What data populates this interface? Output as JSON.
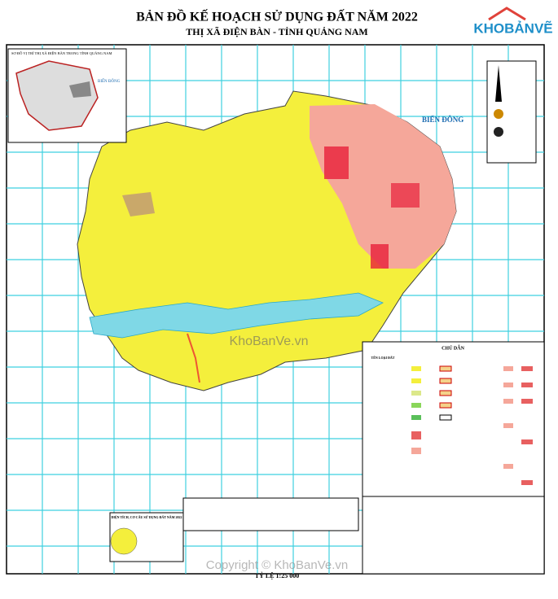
{
  "header": {
    "title": "BẢN ĐỒ KẾ HOẠCH SỬ DỤNG ĐẤT NĂM 2022",
    "subtitle": "THỊ XÃ ĐIỆN BÀN - TỈNH QUẢNG NAM"
  },
  "logo": "KHOBẢNVẼ",
  "map": {
    "sea_label": "BIỂN ĐÔNG",
    "inset_title": "SƠ ĐỒ VỊ TRÍ THỊ XÃ ĐIỆN BÀN TRONG TỈNH QUẢNG NAM",
    "inset_sea_label": "BIỂN ĐÔNG"
  },
  "legend": {
    "title": "CHÚ DẪN",
    "column_header": "TÊN LOẠI ĐẤT"
  },
  "pie_chart": {
    "title": "DIỆN TÍCH, CƠ CẤU SỬ DỤNG ĐẤT NĂM 2022"
  },
  "footer": {
    "scale": "TỶ LỆ 1:25 000"
  },
  "watermarks": {
    "center": "KhoBanVe.vn",
    "bottom": "Copyright © KhoBanVe.vn"
  }
}
